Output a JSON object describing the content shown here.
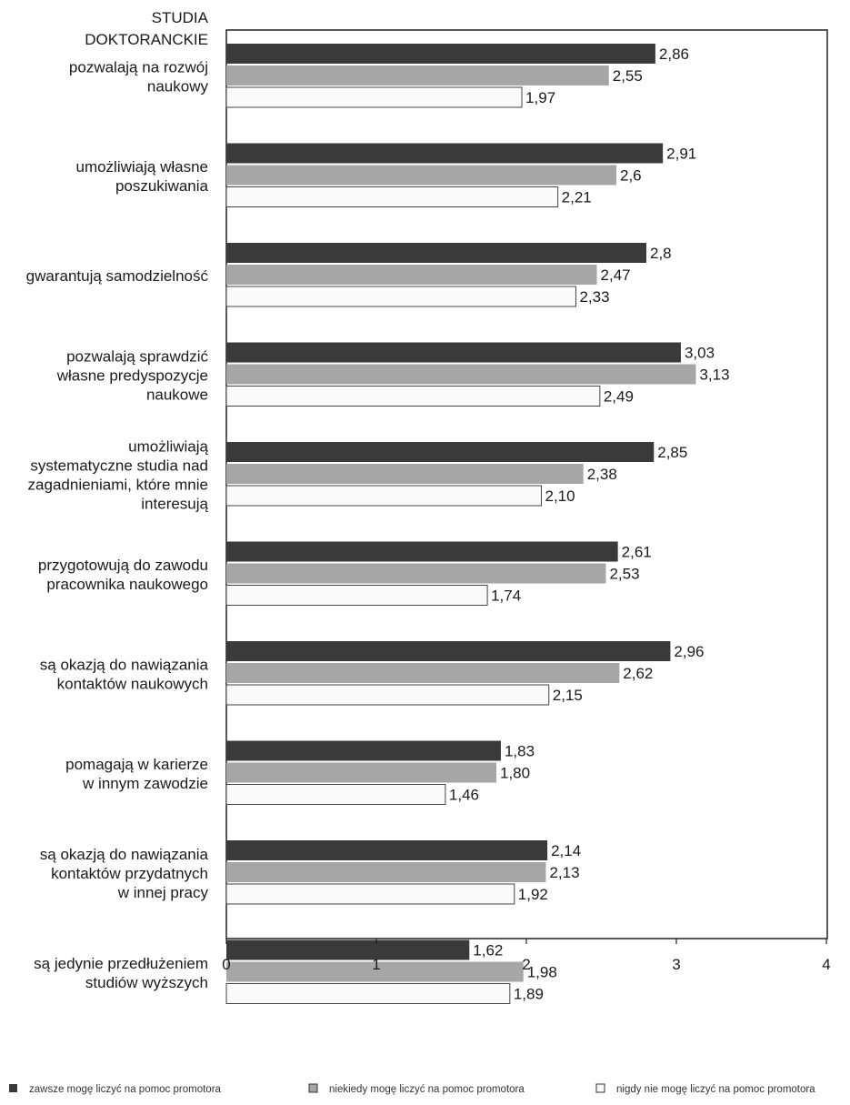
{
  "chart_data": {
    "type": "bar",
    "orientation": "horizontal",
    "header_label": [
      "STUDIA",
      "DOKTORANCKIE"
    ],
    "categories": [
      [
        "pozwalają na rozwój",
        "naukowy"
      ],
      [
        "umożliwiają własne",
        "poszukiwania"
      ],
      [
        "gwarantują samodzielność"
      ],
      [
        "pozwalają sprawdzić",
        "własne predyspozycje",
        "naukowe"
      ],
      [
        "umożliwiają",
        "systematyczne studia nad",
        "zagadnieniami, które mnie",
        "interesują"
      ],
      [
        "przygotowują do zawodu",
        "pracownika naukowego"
      ],
      [
        "są okazją do nawiązania",
        "kontaktów naukowych"
      ],
      [
        "pomagają w karierze",
        "w innym zawodzie"
      ],
      [
        "są okazją do nawiązania",
        "kontaktów przydatnych",
        "w innej pracy"
      ],
      [
        "są jedynie przedłużeniem",
        "studiów wyższych"
      ]
    ],
    "series": [
      {
        "name": "zawsze mogę liczyć na pomoc promotora",
        "color": "#3a3a3a",
        "values": [
          2.86,
          2.91,
          2.8,
          3.03,
          2.85,
          2.61,
          2.96,
          1.83,
          2.14,
          1.62
        ],
        "labels": [
          "2,86",
          "2,91",
          "2,8",
          "3,03",
          "2,85",
          "2,61",
          "2,96",
          "1,83",
          "2,14",
          "1,62"
        ]
      },
      {
        "name": "niekiedy mogę liczyć na pomoc promotora",
        "color": "#a6a6a6",
        "values": [
          2.55,
          2.6,
          2.47,
          3.13,
          2.38,
          2.53,
          2.62,
          1.8,
          2.13,
          1.98
        ],
        "labels": [
          "2,55",
          "2,6",
          "2,47",
          "3,13",
          "2,38",
          "2,53",
          "2,62",
          "1,80",
          "2,13",
          "1,98"
        ]
      },
      {
        "name": "nigdy nie mogę liczyć na pomoc promotora",
        "color": "#fafafa",
        "values": [
          1.97,
          2.21,
          2.33,
          2.49,
          2.1,
          1.74,
          2.15,
          1.46,
          1.92,
          1.89
        ],
        "labels": [
          "1,97",
          "2,21",
          "2,33",
          "2,49",
          "2,10",
          "1,74",
          "2,15",
          "1,46",
          "1,92",
          "1,89"
        ]
      }
    ],
    "xlim": [
      0,
      4
    ],
    "xticks": [
      0,
      1,
      2,
      3,
      4
    ],
    "xtick_labels": [
      "0",
      "1",
      "2",
      "3",
      "4"
    ],
    "grid": false,
    "legend_position": "bottom"
  }
}
